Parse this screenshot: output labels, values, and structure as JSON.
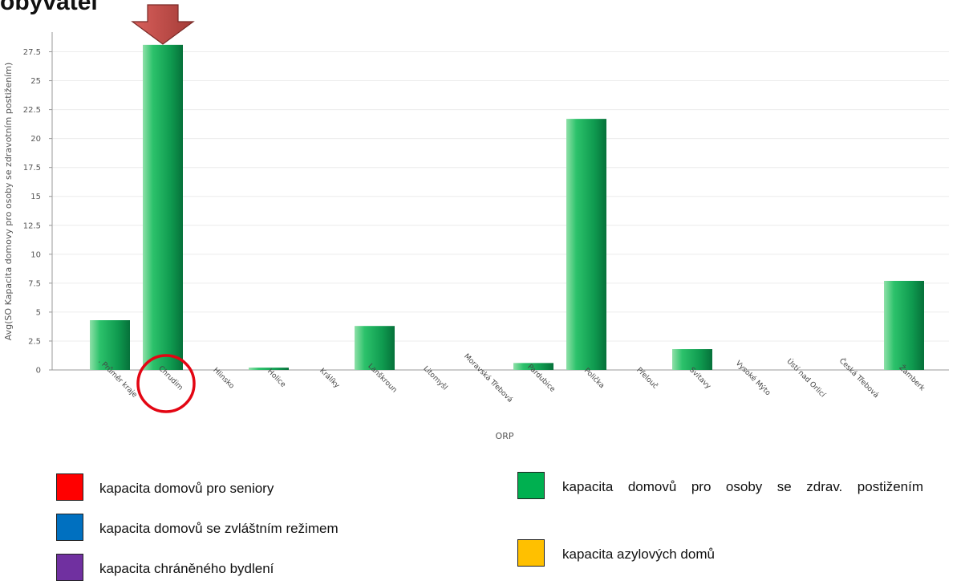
{
  "title": "obyvatel",
  "chart_data": {
    "type": "bar",
    "ylabel": "Avg(SO Kapacita domovy pro osoby se zdravotním postižením)",
    "xlabel": "ORP",
    "ylim": [
      0,
      29.2
    ],
    "yticks": [
      "0",
      "2.5",
      "5",
      "7.5",
      "10",
      "12.5",
      "15",
      "17.5",
      "20",
      "22.5",
      "25",
      "27.5"
    ],
    "categories": [
      ". Průměr kraje",
      "Chrudim",
      "Hlinsko",
      "Holice",
      "Králíky",
      "Lanškroun",
      "Litomyšl",
      "Moravská Třebová",
      "Pardubice",
      "Polička",
      "Přelouč",
      "Svitavy",
      "Vysoké Mýto",
      "Ústí nad Orlicí",
      "Česká Třebová",
      "Žamberk"
    ],
    "values": [
      4.3,
      28.1,
      0,
      0.2,
      0,
      3.8,
      0,
      0,
      0.6,
      21.7,
      0,
      1.8,
      0,
      0,
      0,
      7.7
    ],
    "grid": true,
    "bar_color": "#19a35a",
    "highlight": {
      "category": "Chrudim",
      "arrow_color": "#c0504d",
      "circle_color": "#e30613"
    }
  },
  "legend": {
    "items": [
      {
        "label": "kapacita domovů pro seniory",
        "color": "#ff0000"
      },
      {
        "label": "kapacita domovů se zvláštním režimem",
        "color": "#0070c0"
      },
      {
        "label": "kapacita chráněného bydlení",
        "color": "#7030a0"
      },
      {
        "label": "kapacita domovů pro osoby se zdrav. postižením",
        "color": "#00b050"
      },
      {
        "label": "kapacita azylových domů",
        "color": "#ffc000"
      }
    ]
  }
}
